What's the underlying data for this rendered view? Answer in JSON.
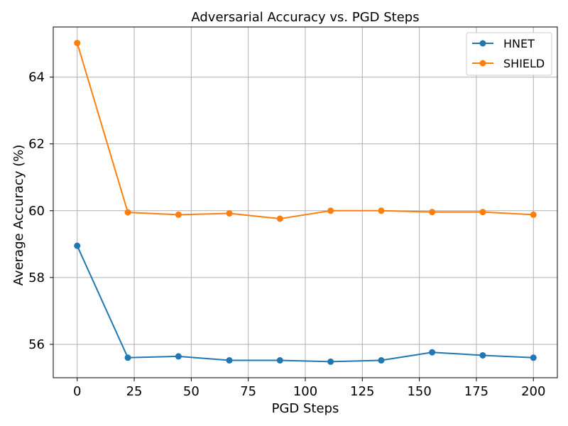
{
  "chart_data": {
    "type": "line",
    "title": "Adversarial Accuracy vs. PGD Steps",
    "xlabel": "PGD Steps",
    "ylabel": "Average Accuracy (%)",
    "xlim": [
      -10.5,
      210.5
    ],
    "ylim": [
      55.0,
      65.5
    ],
    "xticks": [
      0,
      25,
      50,
      75,
      100,
      125,
      150,
      175,
      200
    ],
    "yticks": [
      56,
      58,
      60,
      62,
      64
    ],
    "grid": true,
    "legend_position": "top-right",
    "x": [
      0,
      22.2,
      44.4,
      66.7,
      88.9,
      111.1,
      133.3,
      155.6,
      177.8,
      200
    ],
    "series": [
      {
        "name": "HNET",
        "color": "#1f77b4",
        "values": [
          58.95,
          55.6,
          55.64,
          55.52,
          55.52,
          55.48,
          55.52,
          55.76,
          55.67,
          55.6
        ]
      },
      {
        "name": "SHIELD",
        "color": "#ff7f0e",
        "values": [
          65.02,
          59.95,
          59.88,
          59.92,
          59.76,
          60.0,
          60.0,
          59.96,
          59.96,
          59.88
        ]
      }
    ]
  }
}
